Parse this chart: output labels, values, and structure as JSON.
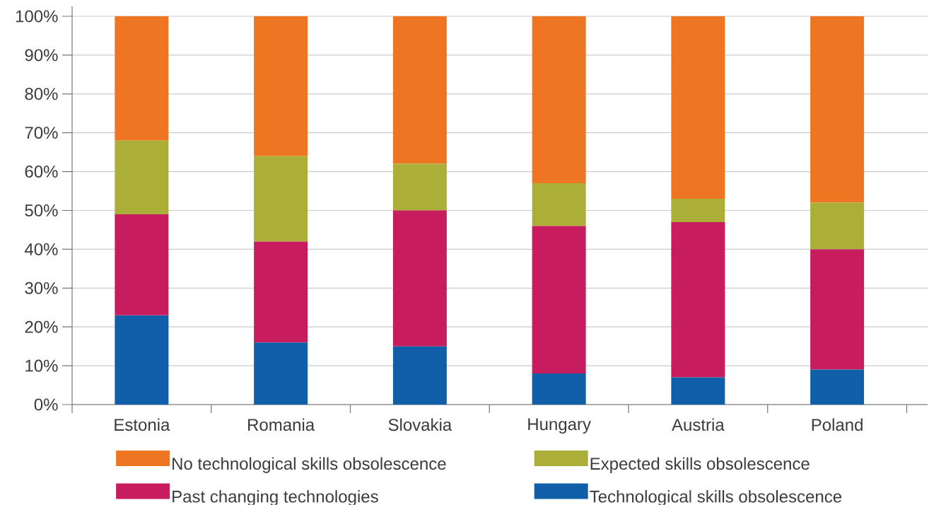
{
  "chart_data": {
    "type": "bar",
    "stacked": true,
    "categories": [
      "Estonia",
      "Romania",
      "Slovakia",
      "Hungary",
      "Austria",
      "Poland"
    ],
    "series": [
      {
        "name": "Technological skills obsolescence",
        "color": "#115fa8",
        "values": [
          23,
          16,
          15,
          8,
          7,
          9
        ]
      },
      {
        "name": "Past changing technologies",
        "color": "#c71d5e",
        "values": [
          26,
          26,
          35,
          38,
          40,
          31
        ]
      },
      {
        "name": "Expected skills obsolescence",
        "color": "#abaf37",
        "values": [
          19,
          22,
          12,
          11,
          6,
          12
        ]
      },
      {
        "name": "No technological skills obsolescence",
        "color": "#ee7623",
        "values": [
          32,
          36,
          38,
          43,
          47,
          48
        ]
      }
    ],
    "ylim": [
      0,
      100
    ],
    "yticks": [
      {
        "value": 0,
        "label": "0%"
      },
      {
        "value": 10,
        "label": "10%"
      },
      {
        "value": 20,
        "label": "20%"
      },
      {
        "value": 30,
        "label": "30%"
      },
      {
        "value": 40,
        "label": "40%"
      },
      {
        "value": 50,
        "label": "50%"
      },
      {
        "value": 60,
        "label": "60%"
      },
      {
        "value": 70,
        "label": "70%"
      },
      {
        "value": 80,
        "label": "80%"
      },
      {
        "value": 90,
        "label": "90%"
      },
      {
        "value": 100,
        "label": "100%"
      }
    ],
    "grid": "y",
    "legend": "bottom"
  }
}
